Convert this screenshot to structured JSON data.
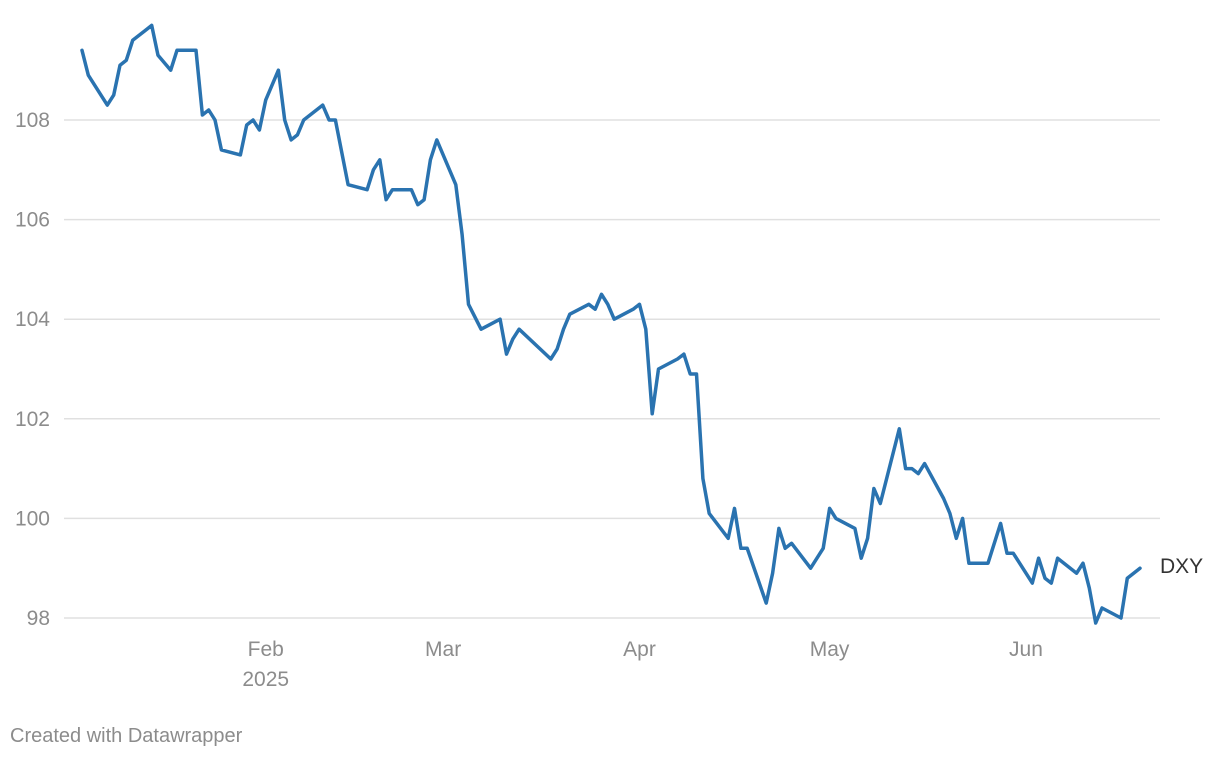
{
  "chart_data": {
    "type": "line",
    "title": "",
    "xlabel": "",
    "ylabel": "",
    "ylim": [
      97.5,
      109.5
    ],
    "y_ticks": [
      98,
      100,
      102,
      104,
      106,
      108
    ],
    "x_ticks": [
      {
        "date": "2025-02-01",
        "label": "Feb",
        "sublabel": "2025"
      },
      {
        "date": "2025-03-01",
        "label": "Mar",
        "sublabel": ""
      },
      {
        "date": "2025-04-01",
        "label": "Apr",
        "sublabel": ""
      },
      {
        "date": "2025-05-01",
        "label": "May",
        "sublabel": ""
      },
      {
        "date": "2025-06-01",
        "label": "Jun",
        "sublabel": ""
      }
    ],
    "grid": true,
    "series": [
      {
        "name": "DXY",
        "color": "#2a73b0",
        "points": [
          [
            "2025-01-03",
            109.4
          ],
          [
            "2025-01-04",
            108.9
          ],
          [
            "2025-01-07",
            108.3
          ],
          [
            "2025-01-08",
            108.5
          ],
          [
            "2025-01-09",
            109.1
          ],
          [
            "2025-01-10",
            109.2
          ],
          [
            "2025-01-11",
            109.6
          ],
          [
            "2025-01-13",
            109.8
          ],
          [
            "2025-01-14",
            109.9
          ],
          [
            "2025-01-15",
            109.3
          ],
          [
            "2025-01-17",
            109.0
          ],
          [
            "2025-01-18",
            109.4
          ],
          [
            "2025-01-21",
            109.4
          ],
          [
            "2025-01-22",
            108.1
          ],
          [
            "2025-01-23",
            108.2
          ],
          [
            "2025-01-24",
            108.0
          ],
          [
            "2025-01-25",
            107.4
          ],
          [
            "2025-01-28",
            107.3
          ],
          [
            "2025-01-29",
            107.9
          ],
          [
            "2025-01-30",
            108.0
          ],
          [
            "2025-01-31",
            107.8
          ],
          [
            "2025-02-01",
            108.4
          ],
          [
            "2025-02-03",
            109.0
          ],
          [
            "2025-02-04",
            108.0
          ],
          [
            "2025-02-05",
            107.6
          ],
          [
            "2025-02-06",
            107.7
          ],
          [
            "2025-02-07",
            108.0
          ],
          [
            "2025-02-10",
            108.3
          ],
          [
            "2025-02-11",
            108.0
          ],
          [
            "2025-02-12",
            108.0
          ],
          [
            "2025-02-14",
            106.7
          ],
          [
            "2025-02-17",
            106.6
          ],
          [
            "2025-02-18",
            107.0
          ],
          [
            "2025-02-19",
            107.2
          ],
          [
            "2025-02-20",
            106.4
          ],
          [
            "2025-02-21",
            106.6
          ],
          [
            "2025-02-24",
            106.6
          ],
          [
            "2025-02-25",
            106.3
          ],
          [
            "2025-02-26",
            106.4
          ],
          [
            "2025-02-27",
            107.2
          ],
          [
            "2025-02-28",
            107.6
          ],
          [
            "2025-03-03",
            106.7
          ],
          [
            "2025-03-04",
            105.7
          ],
          [
            "2025-03-05",
            104.3
          ],
          [
            "2025-03-07",
            103.8
          ],
          [
            "2025-03-10",
            104.0
          ],
          [
            "2025-03-11",
            103.3
          ],
          [
            "2025-03-12",
            103.6
          ],
          [
            "2025-03-13",
            103.8
          ],
          [
            "2025-03-18",
            103.2
          ],
          [
            "2025-03-19",
            103.4
          ],
          [
            "2025-03-20",
            103.8
          ],
          [
            "2025-03-21",
            104.1
          ],
          [
            "2025-03-24",
            104.3
          ],
          [
            "2025-03-25",
            104.2
          ],
          [
            "2025-03-26",
            104.5
          ],
          [
            "2025-03-27",
            104.3
          ],
          [
            "2025-03-28",
            104.0
          ],
          [
            "2025-03-31",
            104.2
          ],
          [
            "2025-04-01",
            104.3
          ],
          [
            "2025-04-02",
            103.8
          ],
          [
            "2025-04-03",
            102.1
          ],
          [
            "2025-04-04",
            103.0
          ],
          [
            "2025-04-07",
            103.2
          ],
          [
            "2025-04-08",
            103.3
          ],
          [
            "2025-04-09",
            102.9
          ],
          [
            "2025-04-10",
            102.9
          ],
          [
            "2025-04-11",
            100.8
          ],
          [
            "2025-04-12",
            100.1
          ],
          [
            "2025-04-15",
            99.6
          ],
          [
            "2025-04-16",
            100.2
          ],
          [
            "2025-04-17",
            99.4
          ],
          [
            "2025-04-18",
            99.4
          ],
          [
            "2025-04-21",
            98.3
          ],
          [
            "2025-04-22",
            98.9
          ],
          [
            "2025-04-23",
            99.8
          ],
          [
            "2025-04-24",
            99.4
          ],
          [
            "2025-04-25",
            99.5
          ],
          [
            "2025-04-28",
            99.0
          ],
          [
            "2025-04-30",
            99.4
          ],
          [
            "2025-05-01",
            100.2
          ],
          [
            "2025-05-02",
            100.0
          ],
          [
            "2025-05-05",
            99.8
          ],
          [
            "2025-05-06",
            99.2
          ],
          [
            "2025-05-07",
            99.6
          ],
          [
            "2025-05-08",
            100.6
          ],
          [
            "2025-05-09",
            100.3
          ],
          [
            "2025-05-12",
            101.8
          ],
          [
            "2025-05-13",
            101.0
          ],
          [
            "2025-05-14",
            101.0
          ],
          [
            "2025-05-15",
            100.9
          ],
          [
            "2025-05-16",
            101.1
          ],
          [
            "2025-05-19",
            100.4
          ],
          [
            "2025-05-20",
            100.1
          ],
          [
            "2025-05-21",
            99.6
          ],
          [
            "2025-05-22",
            100.0
          ],
          [
            "2025-05-23",
            99.1
          ],
          [
            "2025-05-26",
            99.1
          ],
          [
            "2025-05-28",
            99.9
          ],
          [
            "2025-05-29",
            99.3
          ],
          [
            "2025-05-30",
            99.3
          ],
          [
            "2025-06-02",
            98.7
          ],
          [
            "2025-06-03",
            99.2
          ],
          [
            "2025-06-04",
            98.8
          ],
          [
            "2025-06-05",
            98.7
          ],
          [
            "2025-06-06",
            99.2
          ],
          [
            "2025-06-09",
            98.9
          ],
          [
            "2025-06-10",
            99.1
          ],
          [
            "2025-06-11",
            98.6
          ],
          [
            "2025-06-12",
            97.9
          ],
          [
            "2025-06-13",
            98.2
          ],
          [
            "2025-06-16",
            98.0
          ],
          [
            "2025-06-17",
            98.8
          ],
          [
            "2025-06-19",
            99.0
          ]
        ]
      }
    ]
  },
  "footer": {
    "credit": "Created with Datawrapper"
  }
}
